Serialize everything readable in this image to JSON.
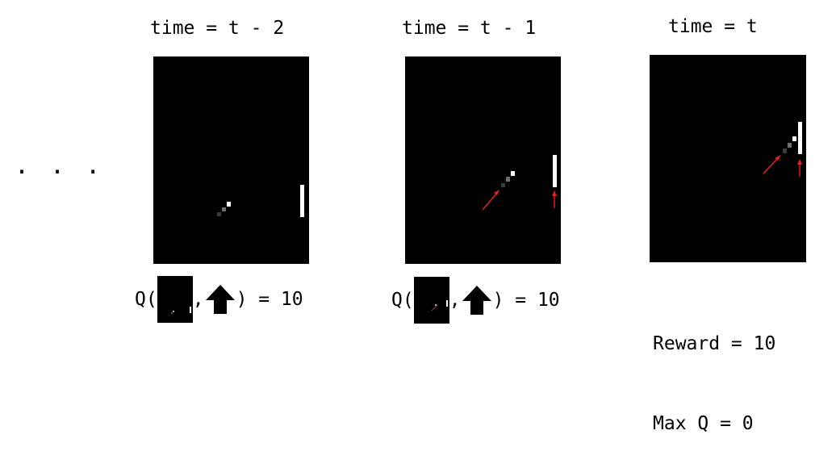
{
  "frames": [
    {
      "label": "time = t - 2"
    },
    {
      "label": "time = t - 1"
    },
    {
      "label": "time = t"
    }
  ],
  "ellipsis": "...",
  "q_values": [
    {
      "prefix": "Q(",
      "comma": ",",
      "suffix": ") = 10"
    },
    {
      "prefix": "Q(",
      "comma": ",",
      "suffix": ") = 10"
    }
  ],
  "final": {
    "reward": "Reward = 10",
    "max_q": "Max Q = 0"
  },
  "colors": {
    "background": "#000000",
    "paddle": "#ffffff",
    "annotation_arrow": "#e8231f"
  },
  "icons": {
    "action": "up-arrow-icon"
  }
}
